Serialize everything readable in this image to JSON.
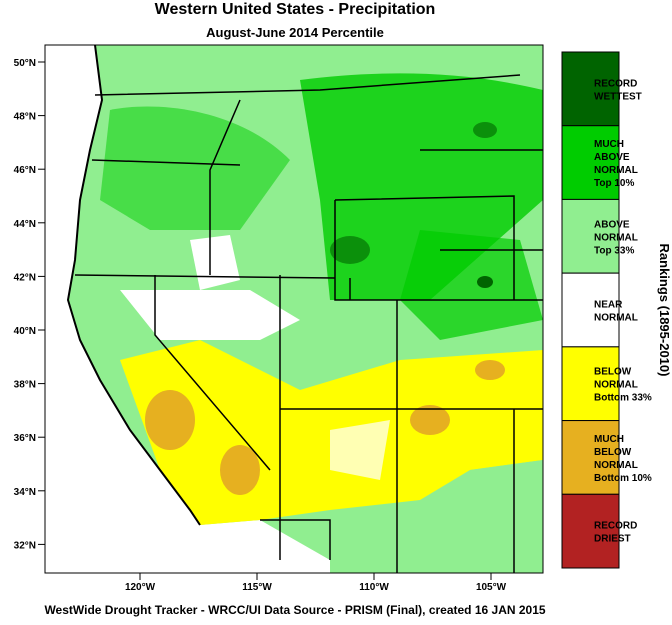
{
  "header": {
    "title": "Western United States - Precipitation",
    "subtitle": "August-June 2014 Percentile"
  },
  "map": {
    "lat_labels": [
      "50°N",
      "48°N",
      "46°N",
      "44°N",
      "42°N",
      "40°N",
      "38°N",
      "36°N",
      "34°N",
      "32°N"
    ],
    "lon_labels": [
      "120°W",
      "115°W",
      "110°W",
      "105°W"
    ]
  },
  "legend": {
    "title": "Rankings (1895-2010)",
    "items": [
      {
        "lines": [
          "RECORD",
          "WETTEST"
        ],
        "color": "#006400"
      },
      {
        "lines": [
          "MUCH",
          "ABOVE",
          "NORMAL",
          "Top 10%"
        ],
        "color": "#00cc00"
      },
      {
        "lines": [
          "ABOVE",
          "NORMAL",
          "Top 33%"
        ],
        "color": "#90ee90"
      },
      {
        "lines": [
          "NEAR",
          "NORMAL"
        ],
        "color": "#ffffff"
      },
      {
        "lines": [
          "BELOW",
          "NORMAL",
          "Bottom 33%"
        ],
        "color": "#ffff00"
      },
      {
        "lines": [
          "MUCH",
          "BELOW",
          "NORMAL",
          "Bottom 10%"
        ],
        "color": "#e6b020"
      },
      {
        "lines": [
          "RECORD",
          "DRIEST"
        ],
        "color": "#b22222"
      }
    ]
  },
  "footer": "WestWide Drought Tracker - WRCC/UI  Data Source - PRISM (Final), created 16 JAN 2015"
}
